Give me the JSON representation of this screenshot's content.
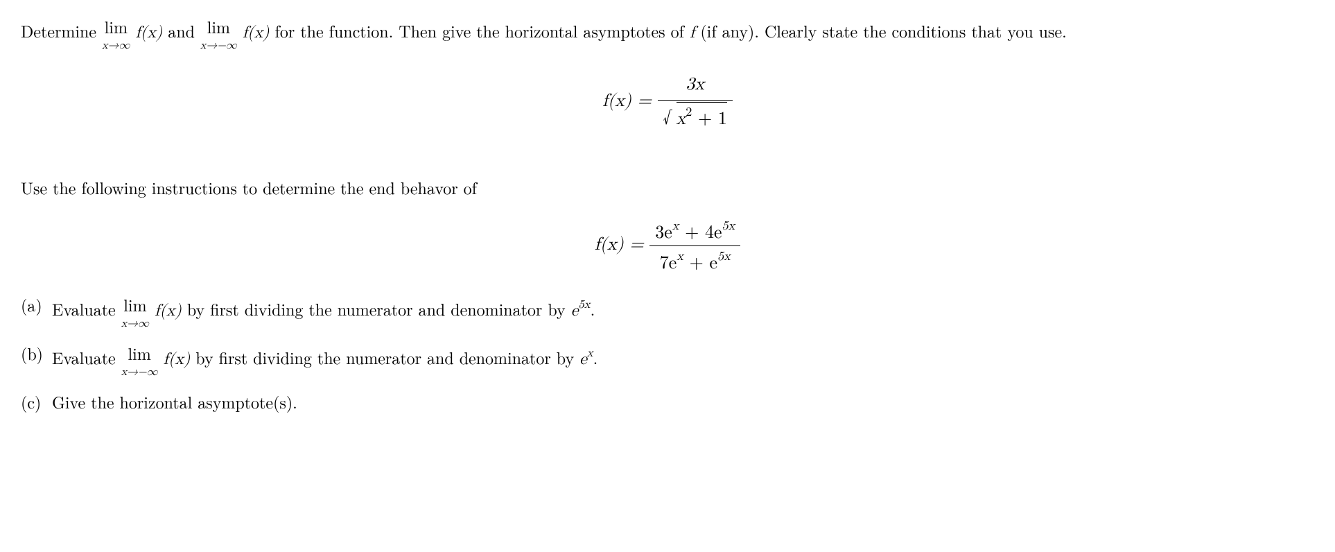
{
  "problem1": {
    "prompt_part1": "Determine",
    "limit1_top": "lim",
    "limit1_sub": "x→∞",
    "fx": "f(x)",
    "and": "and",
    "limit2_top": "lim",
    "limit2_sub": "x→−∞",
    "prompt_part2": "for the function.  Then give the horizontal asymptotes of",
    "f": "f",
    "prompt_part3": "(if any).  Clearly state the conditions that you use.",
    "formula_lhs": "f(x) =",
    "formula_num": "3x",
    "formula_den_sqrt_content": "x",
    "formula_den_sqrt_exp": "2",
    "formula_den_sqrt_tail": " + 1"
  },
  "problem2": {
    "prompt": "Use the following instructions to determine the end behavor of",
    "formula_lhs": "f(x) =",
    "formula_num_part1": "3e",
    "formula_num_exp1": "x",
    "formula_num_part2": " + 4e",
    "formula_num_exp2": "5x",
    "formula_den_part1": "7e",
    "formula_den_exp1": "x",
    "formula_den_part2": " + e",
    "formula_den_exp2": "5x",
    "items": {
      "a": {
        "label": "(a)",
        "text_part1": "Evaluate",
        "limit_top": "lim",
        "limit_sub": "x→∞",
        "fx": "f(x)",
        "text_part2": "by first dividing the numerator and denominator by",
        "divisor": "e",
        "divisor_exp": "5x",
        "period": "."
      },
      "b": {
        "label": "(b)",
        "text_part1": "Evaluate",
        "limit_top": "lim",
        "limit_sub": "x→−∞",
        "fx": "f(x)",
        "text_part2": "by first dividing the numerator and denominator by",
        "divisor": "e",
        "divisor_exp": "x",
        "period": "."
      },
      "c": {
        "label": "(c)",
        "text": "Give the horizontal asymptote(s)."
      }
    }
  },
  "styling": {
    "font_size_body": 24,
    "font_size_formula": 26,
    "font_size_limit_sub": 16,
    "font_size_sup": 0.7,
    "color_text": "#000000",
    "color_background": "#ffffff",
    "font_family": "Latin Modern Roman, Computer Modern, Georgia, serif"
  }
}
